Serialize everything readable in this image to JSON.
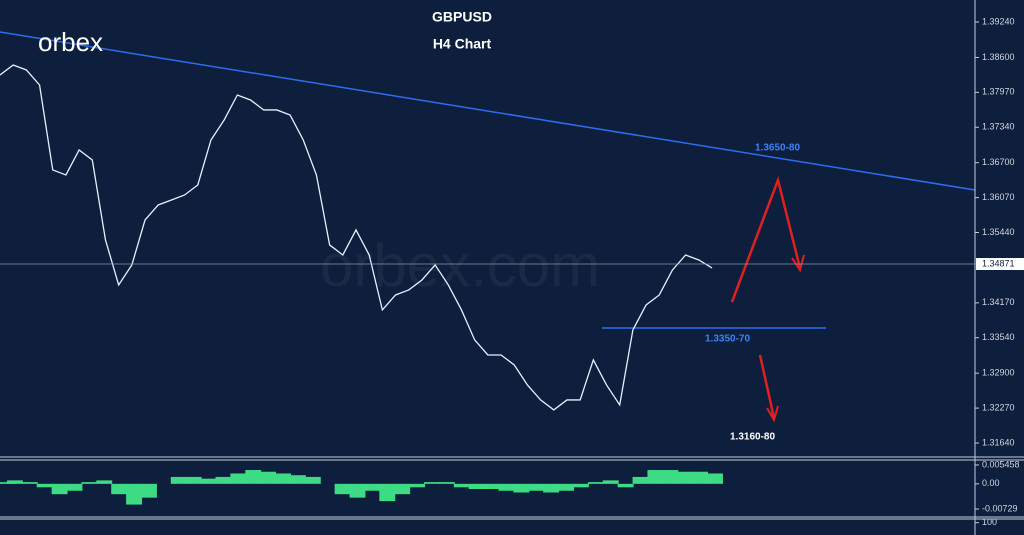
{
  "logo": "orbex",
  "watermark": "orbex.com",
  "chart_data": [
    {
      "type": "line",
      "title": "GBPUSD",
      "subtitle": "H4 Chart",
      "color": "#e8f0ff",
      "values": [
        1.38283,
        1.38464,
        1.38374,
        1.38103,
        1.36569,
        1.36478,
        1.3693,
        1.36749,
        1.35305,
        1.34493,
        1.34854,
        1.35666,
        1.35937,
        1.36027,
        1.36117,
        1.36298,
        1.3711,
        1.37471,
        1.37922,
        1.37832,
        1.37652,
        1.37652,
        1.37561,
        1.3711,
        1.36478,
        1.35215,
        1.35034,
        1.35486,
        1.35034,
        1.34042,
        1.34312,
        1.34403,
        1.34583,
        1.34854,
        1.34493,
        1.34042,
        1.335,
        1.33229,
        1.33229,
        1.33049,
        1.32688,
        1.32417,
        1.32237,
        1.32417,
        1.32417,
        1.33139,
        1.32688,
        1.32327,
        1.33681,
        1.34132,
        1.34312,
        1.34764,
        1.35034,
        1.34944,
        1.348
      ],
      "last_price": 1.34871,
      "ylim": [
        1.31387,
        1.39637
      ],
      "yticks": [
        {
          "value": 1.3924,
          "label": "1.39240"
        },
        {
          "value": 1.386,
          "label": "1.38600"
        },
        {
          "value": 1.3797,
          "label": "1.37970"
        },
        {
          "value": 1.3734,
          "label": "1.37340"
        },
        {
          "value": 1.367,
          "label": "1.36700"
        },
        {
          "value": 1.3607,
          "label": "1.36070"
        },
        {
          "value": 1.3544,
          "label": "1.35440"
        },
        {
          "value": 1.3417,
          "label": "1.34170"
        },
        {
          "value": 1.3354,
          "label": "1.33540"
        },
        {
          "value": 1.329,
          "label": "1.32900"
        },
        {
          "value": 1.3227,
          "label": "1.32270"
        },
        {
          "value": 1.3164,
          "label": "1.31640"
        }
      ],
      "annotations": [
        "1.3650-80",
        "1.3350-70",
        "1.3160-80"
      ]
    },
    {
      "type": "bar",
      "color": "#3ddc84",
      "values": [
        0.0005,
        0.001,
        0.0005,
        -0.001,
        -0.003,
        -0.002,
        0.0005,
        0.001,
        -0.003,
        -0.006,
        -0.004,
        0.0,
        0.002,
        0.002,
        0.0015,
        0.002,
        0.003,
        0.004,
        0.0035,
        0.003,
        0.0025,
        0.002,
        0.0,
        -0.003,
        -0.004,
        -0.002,
        -0.005,
        -0.003,
        -0.001,
        0.0005,
        0.0005,
        -0.001,
        -0.0015,
        -0.0015,
        -0.002,
        -0.0025,
        -0.002,
        -0.0025,
        -0.002,
        -0.001,
        0.0005,
        0.001,
        -0.001,
        0.002,
        0.004,
        0.004,
        0.0035,
        0.0035,
        0.003
      ],
      "ylim": [
        -0.0096,
        0.0069
      ],
      "yticks": [
        0.005458,
        {
          "value": 0,
          "label": "0.00"
        },
        -0.00729
      ]
    },
    {
      "type": "line",
      "ylim": [
        0,
        130
      ],
      "yticks": [
        100
      ]
    }
  ]
}
